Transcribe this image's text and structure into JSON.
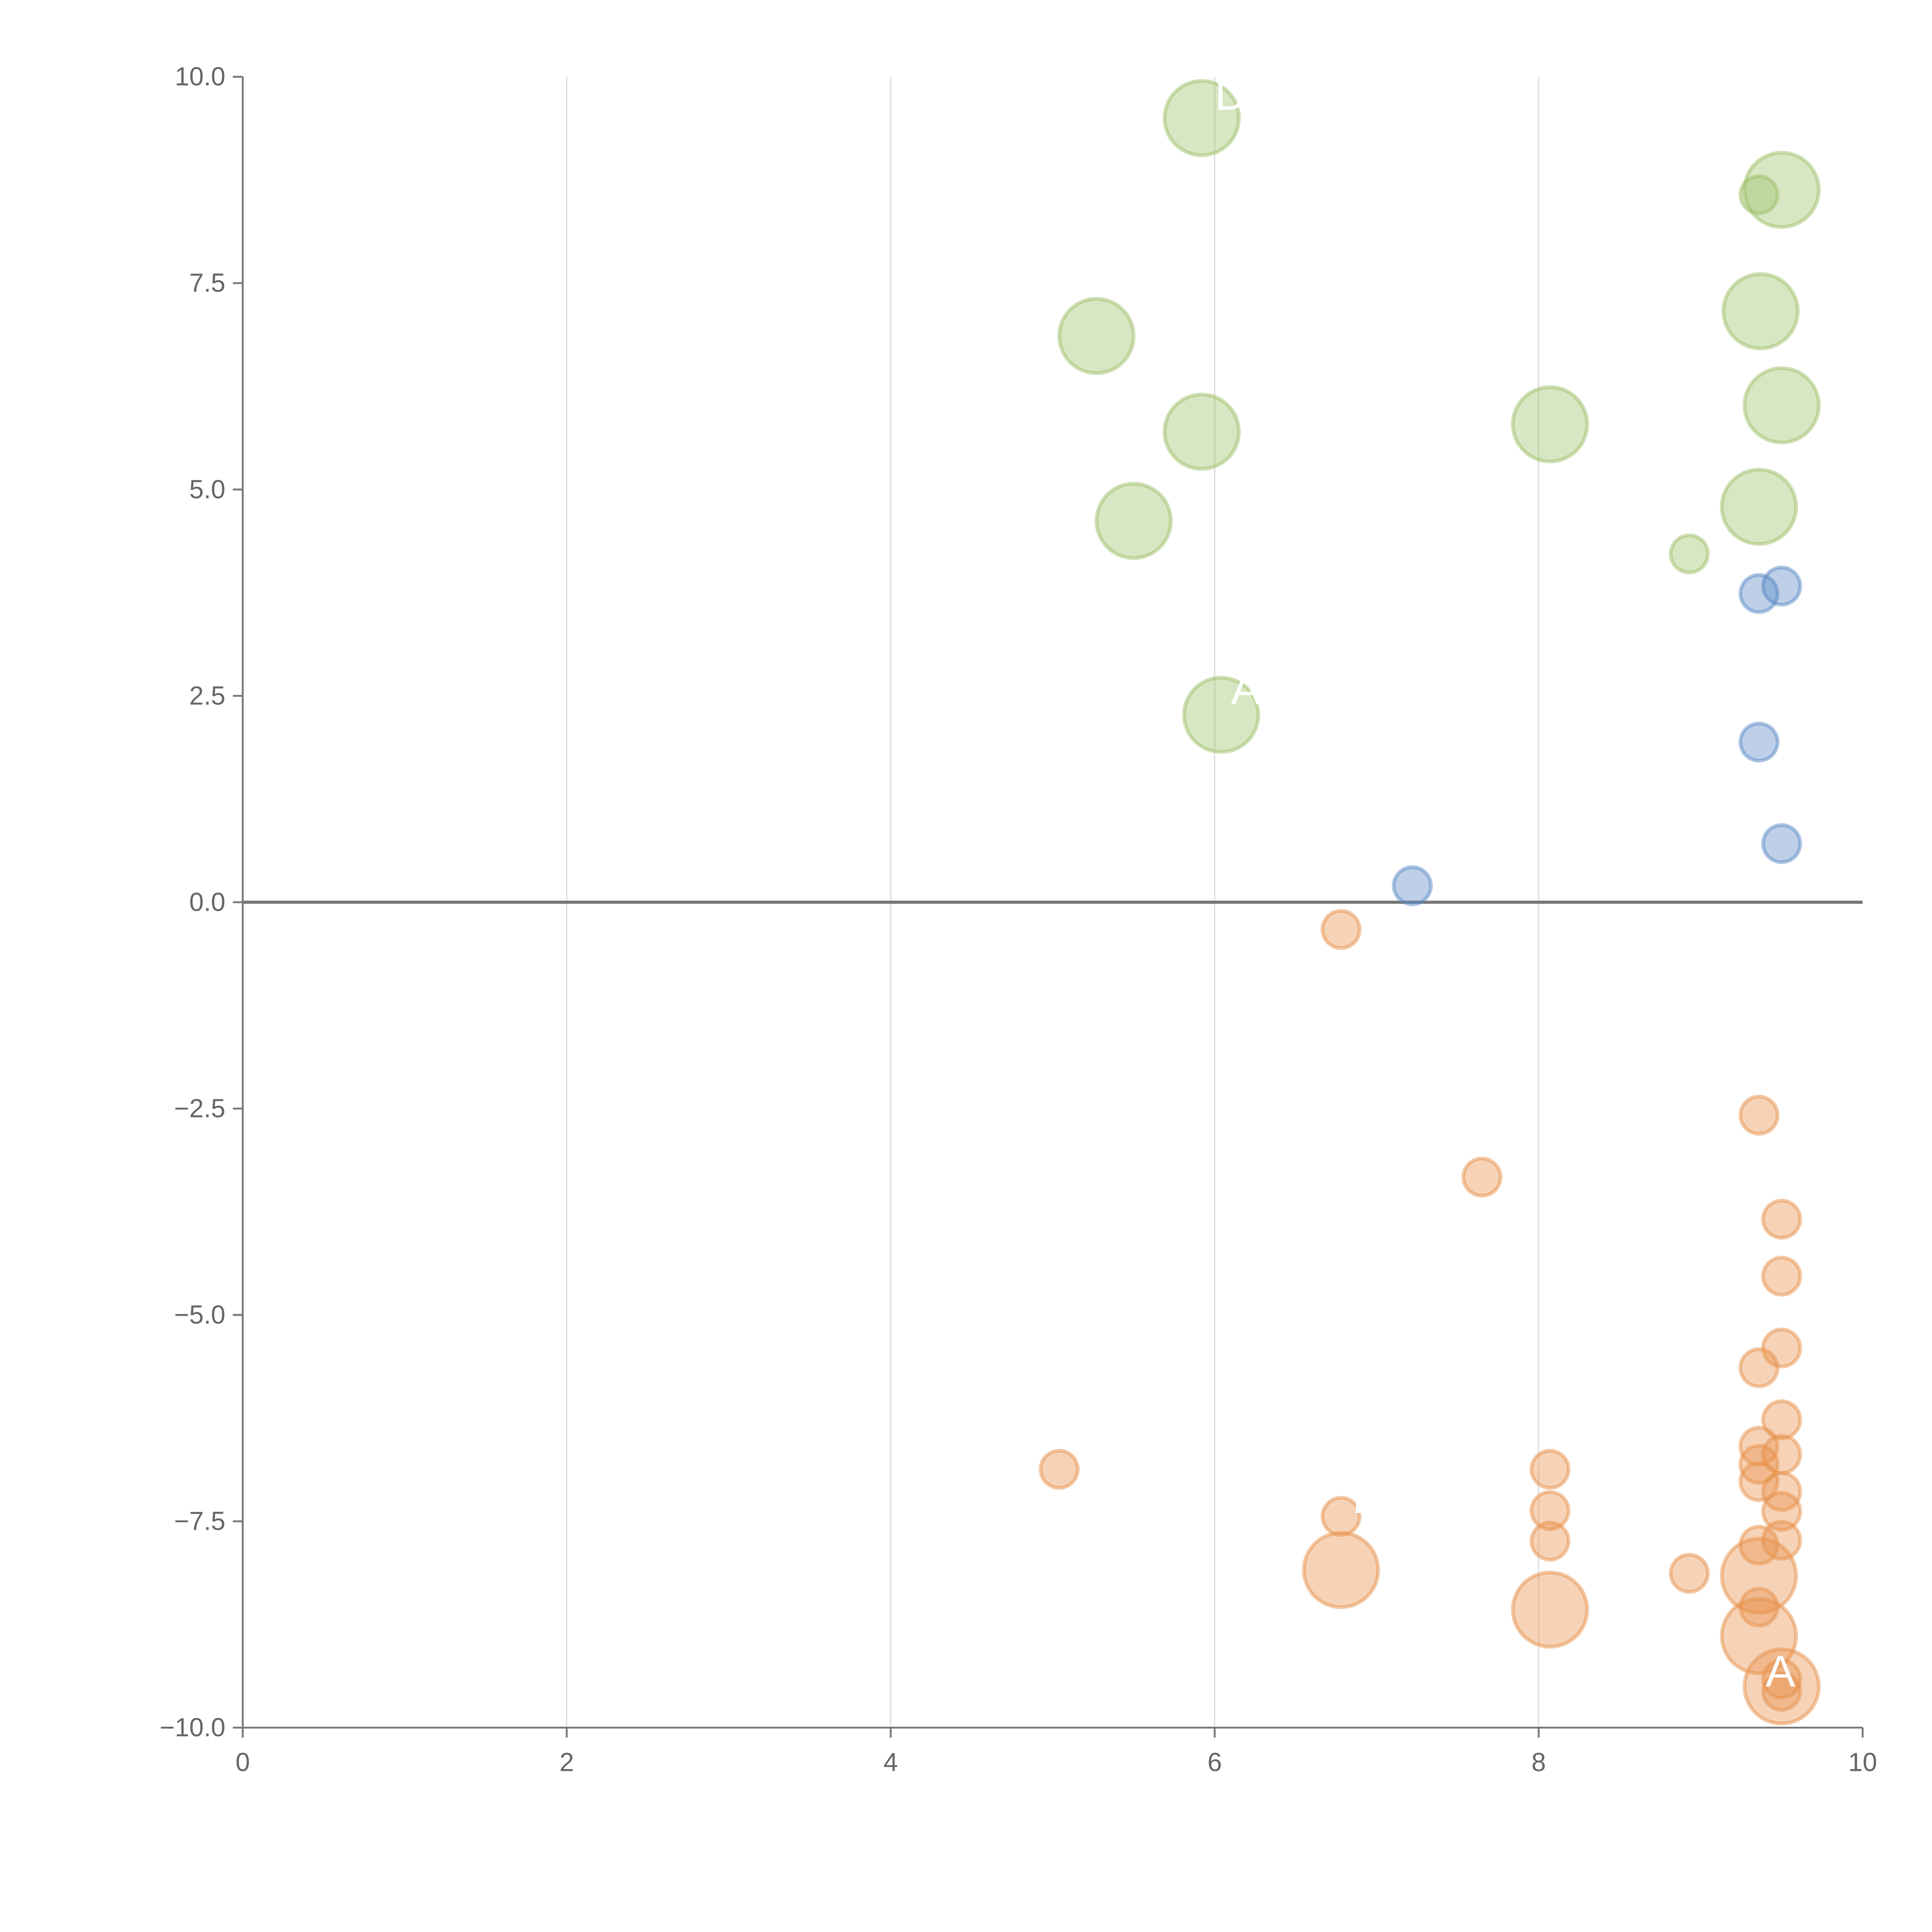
{
  "chart_data": {
    "type": "scatter",
    "title": "",
    "xlabel": "",
    "ylabel": "",
    "xlim": [
      0,
      10
    ],
    "ylim": [
      -10,
      10
    ],
    "xticks": [
      "0",
      "2",
      "4",
      "6",
      "8",
      "10"
    ],
    "yticks": [
      "10.0",
      "7.5",
      "5.0",
      "2.5",
      "0.0",
      "−2.5",
      "−5.0",
      "−7.5",
      "−10.0"
    ],
    "grid": "vertical",
    "series": [
      {
        "name": "green",
        "color": "#9dc06a",
        "points": [
          {
            "x": 5.92,
            "y": 9.5,
            "size": "large"
          },
          {
            "x": 9.36,
            "y": 8.57,
            "size": "small"
          },
          {
            "x": 9.5,
            "y": 8.63,
            "size": "large"
          },
          {
            "x": 9.37,
            "y": 7.16,
            "size": "large"
          },
          {
            "x": 5.27,
            "y": 6.86,
            "size": "large"
          },
          {
            "x": 9.5,
            "y": 6.02,
            "size": "large"
          },
          {
            "x": 5.92,
            "y": 5.7,
            "size": "large"
          },
          {
            "x": 8.07,
            "y": 5.79,
            "size": "large"
          },
          {
            "x": 5.5,
            "y": 4.62,
            "size": "large"
          },
          {
            "x": 9.36,
            "y": 4.79,
            "size": "large"
          },
          {
            "x": 8.93,
            "y": 4.22,
            "size": "small"
          },
          {
            "x": 6.04,
            "y": 2.27,
            "size": "large"
          }
        ]
      },
      {
        "name": "blue",
        "color": "#5b8ac6",
        "points": [
          {
            "x": 9.36,
            "y": 3.74,
            "size": "small"
          },
          {
            "x": 9.5,
            "y": 3.83,
            "size": "small"
          },
          {
            "x": 9.36,
            "y": 1.94,
            "size": "small"
          },
          {
            "x": 9.5,
            "y": 0.71,
            "size": "small"
          },
          {
            "x": 7.22,
            "y": 0.2,
            "size": "small"
          }
        ]
      },
      {
        "name": "orange",
        "color": "#e8914b",
        "points": [
          {
            "x": 6.78,
            "y": -0.33,
            "size": "small"
          },
          {
            "x": 9.36,
            "y": -2.58,
            "size": "small"
          },
          {
            "x": 7.65,
            "y": -3.33,
            "size": "small"
          },
          {
            "x": 9.5,
            "y": -3.84,
            "size": "small"
          },
          {
            "x": 9.5,
            "y": -4.53,
            "size": "small"
          },
          {
            "x": 9.5,
            "y": -5.4,
            "size": "small"
          },
          {
            "x": 9.36,
            "y": -5.64,
            "size": "small"
          },
          {
            "x": 9.5,
            "y": -6.27,
            "size": "small"
          },
          {
            "x": 5.04,
            "y": -6.87,
            "size": "small"
          },
          {
            "x": 8.07,
            "y": -6.87,
            "size": "small"
          },
          {
            "x": 9.36,
            "y": -6.59,
            "size": "small"
          },
          {
            "x": 9.36,
            "y": -6.81,
            "size": "small"
          },
          {
            "x": 9.36,
            "y": -7.02,
            "size": "small"
          },
          {
            "x": 9.5,
            "y": -6.69,
            "size": "small"
          },
          {
            "x": 9.5,
            "y": -7.14,
            "size": "small"
          },
          {
            "x": 6.78,
            "y": -7.44,
            "size": "small"
          },
          {
            "x": 8.07,
            "y": -7.37,
            "size": "small"
          },
          {
            "x": 9.5,
            "y": -7.38,
            "size": "small"
          },
          {
            "x": 8.07,
            "y": -7.74,
            "size": "small"
          },
          {
            "x": 9.5,
            "y": -7.73,
            "size": "small"
          },
          {
            "x": 9.36,
            "y": -7.79,
            "size": "small"
          },
          {
            "x": 8.93,
            "y": -8.13,
            "size": "small"
          },
          {
            "x": 6.78,
            "y": -8.09,
            "size": "large"
          },
          {
            "x": 9.36,
            "y": -8.16,
            "size": "large"
          },
          {
            "x": 9.36,
            "y": -8.54,
            "size": "small"
          },
          {
            "x": 8.07,
            "y": -8.57,
            "size": "large"
          },
          {
            "x": 9.36,
            "y": -8.89,
            "size": "large"
          },
          {
            "x": 9.5,
            "y": -9.41,
            "size": "small"
          },
          {
            "x": 9.5,
            "y": -9.5,
            "size": "large"
          },
          {
            "x": 9.5,
            "y": -9.56,
            "size": "small"
          }
        ]
      }
    ],
    "annotations": [
      {
        "text": "DA",
        "x": 6.0,
        "y": 9.6
      },
      {
        "text": "A",
        "x": 6.1,
        "y": 2.4
      },
      {
        "text": "E",
        "x": 6.85,
        "y": -7.4
      },
      {
        "text": "A",
        "x": 9.4,
        "y": -9.5
      }
    ]
  }
}
